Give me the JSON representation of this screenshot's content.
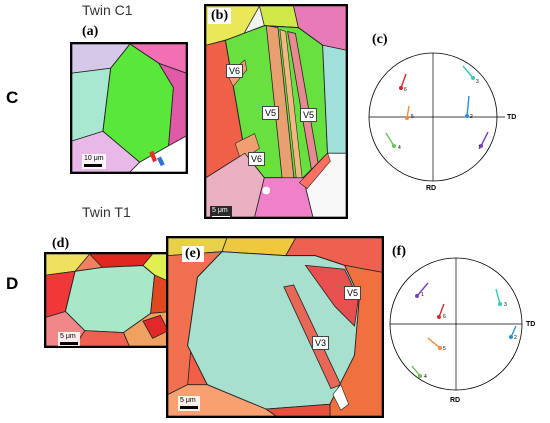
{
  "figure": {
    "rows": [
      {
        "letter": "C",
        "title": "Twin C1",
        "panels": {
          "a": {
            "label": "(a)",
            "scale": "10 μm"
          },
          "b": {
            "label": "(b)",
            "scale": "5 μm",
            "variants": [
              "V6",
              "V5",
              "V5",
              "V6"
            ]
          },
          "c": {
            "label": "(c)",
            "axis_right": "TD",
            "axis_bottom": "RD",
            "poles": [
              "1",
              "2",
              "3",
              "4",
              "5",
              "6"
            ]
          }
        }
      },
      {
        "letter": "D",
        "title": "Twin T1",
        "panels": {
          "d": {
            "label": "(d)",
            "scale": "5 μm"
          },
          "e": {
            "label": "(e)",
            "scale": "5 μm",
            "variants": [
              "V5",
              "V3"
            ]
          },
          "f": {
            "label": "(f)",
            "axis_right": "TD",
            "axis_bottom": "RD",
            "poles": [
              "1",
              "2",
              "3",
              "4",
              "5",
              "6"
            ]
          }
        }
      }
    ],
    "colors": {
      "pole1": "#7a3fc0",
      "pole2": "#2e8fd8",
      "pole3": "#3ac7b0",
      "pole4": "#6cc05a",
      "pole5": "#f08a3a",
      "pole6": "#d8262c"
    }
  }
}
